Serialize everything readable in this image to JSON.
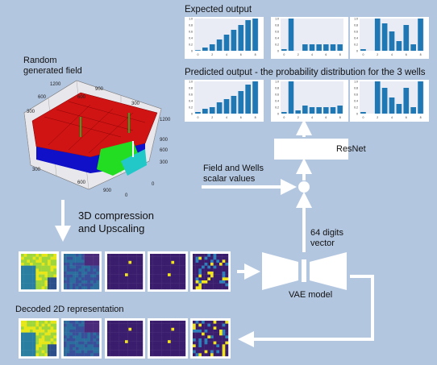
{
  "labels": {
    "expected_output": "Expected output",
    "predicted_output": "Predicted output - the probability distribution for the 3 wells",
    "field_line1": "Random",
    "field_line2": "generated field",
    "compression_line1": "3D compression",
    "compression_line2": "and Upscaling",
    "scalar_line1": "Field and Wells",
    "scalar_line2": "scalar values",
    "latent_line1": "64 digits",
    "latent_line2": "vector",
    "resnet": "ResNet",
    "vae": "VAE model",
    "decoded": "Decoded 2D representation"
  },
  "chart_data": {
    "type": "bar",
    "x": [
      0,
      1,
      2,
      3,
      4,
      5,
      6,
      7,
      8
    ],
    "ylim": [
      0,
      1.0
    ],
    "y_ticks": [
      "1.0",
      "0.8",
      "0.6",
      "0.4",
      "0.2",
      "0"
    ],
    "x_ticks": [
      "0",
      "2",
      "4",
      "6",
      "8"
    ],
    "expected": [
      [
        0.02,
        0.1,
        0.2,
        0.35,
        0.5,
        0.65,
        0.8,
        0.95,
        1.0
      ],
      [
        0.05,
        1.0,
        0.0,
        0.2,
        0.2,
        0.2,
        0.2,
        0.2,
        0.2
      ],
      [
        0.05,
        0.0,
        1.0,
        0.85,
        0.6,
        0.3,
        0.8,
        0.2,
        1.0
      ]
    ],
    "predicted": [
      [
        0.05,
        0.15,
        0.2,
        0.35,
        0.45,
        0.55,
        0.7,
        0.9,
        1.0
      ],
      [
        0.05,
        1.0,
        0.1,
        0.25,
        0.2,
        0.2,
        0.2,
        0.2,
        0.25
      ],
      [
        0.05,
        0.0,
        1.0,
        0.8,
        0.5,
        0.3,
        0.8,
        0.2,
        1.0
      ]
    ]
  },
  "colors": {
    "background": "#b3c6e0",
    "bar": "#1f77b4",
    "plot_bg": "#e9ecf5",
    "arrow": "#ffffff",
    "field_red": "#d01414",
    "field_blue": "#1010c8",
    "field_green": "#22dd22",
    "field_cyan": "#22c8c8"
  }
}
